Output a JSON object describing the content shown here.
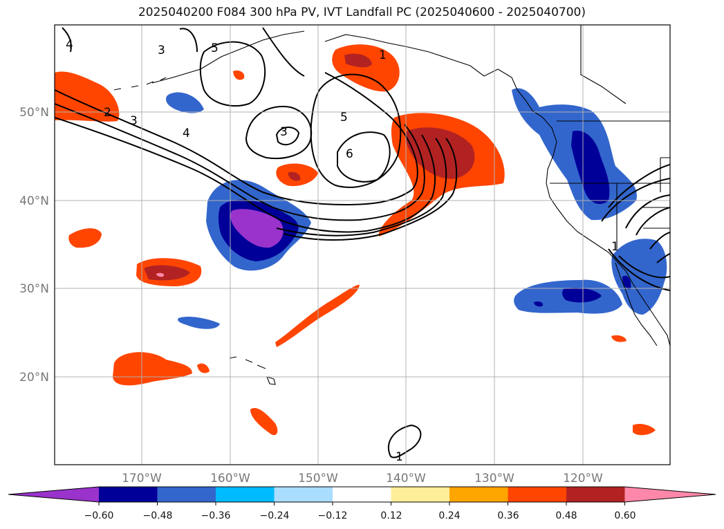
{
  "title": "2025040200 F084 300 hPa PV, IVT Landfall PC (2025040600 - 2025040700)",
  "lat_labels": [
    "50°N",
    "40°N",
    "30°N",
    "20°N"
  ],
  "lon_labels": [
    "170°W",
    "160°W",
    "150°W",
    "140°W",
    "130°W",
    "120°W"
  ],
  "contour_labels": [
    "4",
    "3",
    "5",
    "2",
    "3",
    "4",
    "3",
    "5",
    "6",
    "1",
    "1",
    "1"
  ],
  "colorbar": {
    "tick_labels": [
      "−0.60",
      "−0.48",
      "−0.36",
      "−0.24",
      "−0.12",
      "0.12",
      "0.24",
      "0.36",
      "0.48",
      "0.60"
    ],
    "colors": [
      "#9933cc",
      "#000099",
      "#3366cc",
      "#00bbff",
      "#aaddff",
      "#ffffff",
      "#ffee99",
      "#ffa500",
      "#ff4500",
      "#b22222",
      "#ff88aa"
    ]
  },
  "colors": {
    "neg_high": "#9933cc",
    "neg_mid": "#000099",
    "neg_low": "#3366cc",
    "pos_low": "#ff4500",
    "pos_mid": "#b22222",
    "pos_high": "#ff88aa",
    "grid": "#b0b0b0"
  }
}
